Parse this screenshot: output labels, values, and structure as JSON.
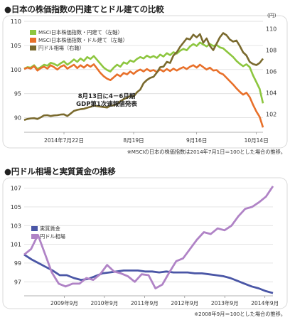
{
  "chart_data": [
    {
      "type": "line",
      "title": "●日本の株価指数の円建てとドル建ての比較",
      "y_left_ticks": [
        110,
        105,
        100,
        95,
        90
      ],
      "y_left_lim": [
        87,
        110
      ],
      "y_right_unit": "(円)",
      "y_right_ticks": [
        110,
        108,
        106,
        104,
        102
      ],
      "y_right_lim": [
        100.3,
        110.7
      ],
      "x_ticks": [
        "2014年7月22日",
        "8月19日",
        "9月16日",
        "10月14日"
      ],
      "annotation": [
        "8月13日に4－6月期",
        "GDP第1次速報値発表"
      ],
      "note": "※MSCIの日本の株価指数は2014年7月1日＝100とした場合の推移。",
      "series": [
        {
          "name": "MSCI日本株価指数・円建て（左軸）",
          "color": "#8dc63f",
          "axis": "left",
          "values": [
            100.2,
            100.5,
            100.4,
            100.9,
            100.1,
            100.5,
            101.0,
            100.8,
            101.4,
            101.2,
            100.8,
            101.3,
            101.7,
            101.0,
            101.5,
            102.1,
            101.6,
            102.3,
            101.8,
            102.6,
            102.2,
            102.8,
            102.0,
            101.2,
            100.4,
            99.9,
            99.6,
            100.4,
            101.0,
            100.6,
            101.5,
            101.2,
            101.9,
            101.6,
            102.2,
            102.6,
            102.3,
            102.9,
            102.5,
            102.8,
            102.4,
            103.1,
            102.7,
            103.4,
            103.0,
            103.6,
            103.3,
            103.9,
            104.3,
            104.0,
            104.8,
            105.3,
            104.9,
            105.6,
            105.2,
            104.8,
            105.3,
            104.9,
            105.1,
            104.6,
            104.4,
            103.8,
            103.2,
            102.6,
            101.8,
            101.2,
            100.7,
            101.1,
            100.5,
            98.8,
            97.4,
            96.0,
            93.0
          ]
        },
        {
          "name": "MSCI日本株価指数・ドル建て（左軸）",
          "color": "#e8702a",
          "axis": "left",
          "values": [
            100.1,
            100.4,
            100.2,
            100.7,
            99.8,
            100.3,
            100.6,
            100.2,
            100.9,
            100.5,
            100.0,
            100.6,
            100.9,
            100.2,
            100.6,
            101.0,
            100.3,
            100.9,
            100.4,
            101.0,
            100.6,
            101.1,
            100.2,
            99.3,
            98.6,
            98.1,
            97.8,
            98.4,
            99.0,
            98.6,
            99.3,
            99.0,
            99.6,
            99.1,
            99.7,
            100.0,
            99.6,
            100.1,
            99.7,
            99.9,
            99.5,
            100.0,
            99.6,
            100.1,
            99.7,
            100.2,
            99.8,
            100.2,
            100.5,
            100.1,
            100.6,
            100.9,
            100.4,
            101.0,
            100.5,
            100.0,
            100.4,
            99.8,
            99.9,
            99.3,
            99.0,
            98.3,
            97.6,
            96.9,
            96.1,
            95.4,
            94.8,
            95.2,
            94.3,
            92.7,
            91.3,
            90.2,
            88.0
          ]
        },
        {
          "name": "円ドル相場（右軸）",
          "color": "#7a6a2e",
          "axis": "right",
          "values": [
            101.45,
            101.55,
            101.6,
            101.62,
            101.55,
            101.7,
            101.88,
            101.9,
            101.82,
            101.88,
            101.9,
            101.96,
            101.98,
            101.82,
            102.05,
            102.3,
            102.4,
            102.46,
            102.5,
            102.6,
            102.68,
            102.8,
            102.75,
            102.7,
            102.66,
            102.62,
            102.8,
            102.82,
            102.95,
            103.2,
            103.4,
            103.55,
            103.7,
            103.65,
            104.05,
            104.3,
            104.9,
            105.2,
            105.4,
            105.5,
            105.9,
            106.4,
            106.45,
            106.9,
            106.8,
            107.5,
            107.8,
            108.3,
            108.7,
            109.1,
            109.0,
            109.45,
            109.2,
            109.5,
            108.7,
            109.1,
            108.4,
            108.0,
            108.6,
            109.2,
            109.6,
            109.4,
            109.0,
            108.8,
            108.9,
            108.4,
            107.8,
            107.5,
            106.9,
            106.7,
            106.6,
            106.8,
            107.2
          ]
        }
      ]
    },
    {
      "type": "line",
      "title": "●円ドル相場と実質賃金の推移",
      "y_ticks": [
        107,
        105,
        103,
        101,
        99,
        97
      ],
      "ylim": [
        95.5,
        107.5
      ],
      "x_ticks": [
        "2009年9月",
        "2010年9月",
        "2011年9月",
        "2012年9月",
        "2013年9月",
        "2014年9月"
      ],
      "note": "※2008年9月＝100とした場合の推移。",
      "series": [
        {
          "name": "実質賃金",
          "color": "#4a56a6",
          "values": [
            99.9,
            99.4,
            99.0,
            98.6,
            98.2,
            97.7,
            97.7,
            97.4,
            97.2,
            97.3,
            97.6,
            97.9,
            98.0,
            98.1,
            98.2,
            98.2,
            98.2,
            98.1,
            98.1,
            98.0,
            98.1,
            98.0,
            98.0,
            98.0,
            97.9,
            97.9,
            97.8,
            97.7,
            97.6,
            97.4,
            97.1,
            96.8,
            96.5,
            96.3,
            96.0,
            95.8
          ]
        },
        {
          "name": "円ドル相場",
          "color": "#b083c6",
          "values": [
            99.9,
            100.5,
            102.0,
            100.0,
            98.0,
            96.8,
            96.5,
            96.8,
            96.8,
            97.4,
            97.2,
            97.8,
            98.8,
            98.1,
            97.9,
            97.6,
            97.0,
            97.8,
            97.7,
            96.3,
            96.7,
            98.0,
            99.2,
            99.5,
            100.5,
            101.5,
            102.3,
            102.1,
            102.7,
            102.5,
            103.0,
            104.0,
            104.8,
            105.0,
            105.5,
            106.1,
            107.2
          ]
        }
      ]
    }
  ]
}
